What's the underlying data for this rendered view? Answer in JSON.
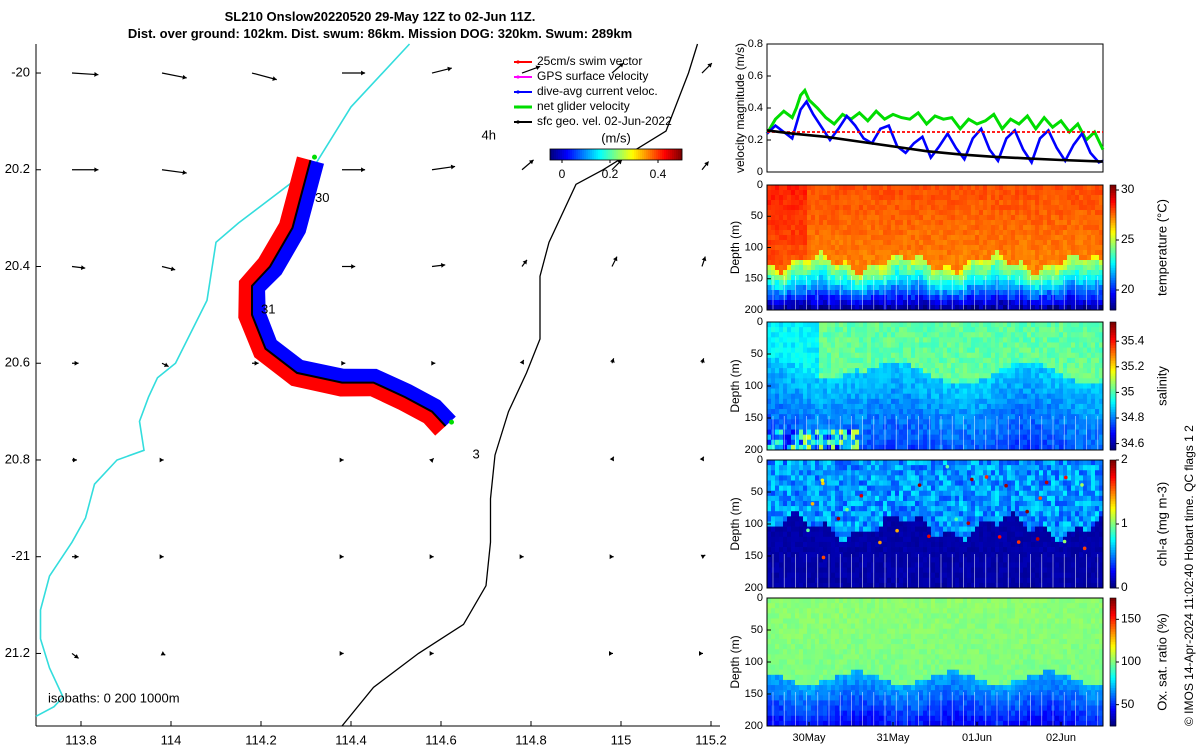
{
  "figure": {
    "title_line1": "SL210 Onslow20220520 29-May 12Z to 02-Jun 11Z.",
    "title_line2": "Dist. over ground: 102km. Dist. swum: 86km. Mission DOG: 320km. Swum: 289km",
    "footer_stamp": "© IMOS 14-Apr-2024 11:02:40 Hobart time. QC flags 1  2"
  },
  "chart_data": [
    {
      "type": "map",
      "xlim": [
        113.7,
        115.22
      ],
      "ylim": [
        -21.35,
        -19.94
      ],
      "xticks": [
        113.8,
        114,
        114.2,
        114.4,
        114.6,
        114.8,
        115,
        115.2
      ],
      "xtick_labels": [
        "113.8",
        "114",
        "114.2",
        "114.4",
        "114.6",
        "114.8",
        "115",
        "115.2"
      ],
      "yticks": [
        -20.0,
        -20.2,
        -20.4,
        -20.6,
        -20.8,
        -21.0,
        -21.2
      ],
      "ytick_labels": [
        "-20",
        "20.2",
        "20.4",
        "20.6",
        "20.8",
        "-21",
        "21.2"
      ],
      "legend": [
        {
          "label": "25cm/s swim vector",
          "color": "#ff0000"
        },
        {
          "label": "GPS surface velocity",
          "color": "#ff00ff"
        },
        {
          "label": "dive-avg current veloc.",
          "color": "#0000ff"
        },
        {
          "label": "net glider velocity",
          "color": "#00dd00"
        },
        {
          "label": "sfc geo. vel. 02-Jun-2022",
          "color": "#000000"
        }
      ],
      "colorbar": {
        "label": "(m/s)",
        "ticks": [
          0,
          0.2,
          0.4
        ],
        "tick_labels": [
          "0",
          "0.2",
          "0.4"
        ],
        "range": [
          -0.05,
          0.5
        ]
      },
      "isobaths_text": "isobaths: 0   200  1000m",
      "time_labels": [
        {
          "text": "4h",
          "lon": 114.69,
          "lat": -20.13
        },
        {
          "text": "30",
          "lon": 114.32,
          "lat": -20.26
        },
        {
          "text": "31",
          "lon": 114.2,
          "lat": -20.49
        },
        {
          "text": "3",
          "lon": 114.67,
          "lat": -20.79
        }
      ],
      "track": [
        [
          114.31,
          -20.18
        ],
        [
          114.27,
          -20.32
        ],
        [
          114.22,
          -20.4
        ],
        [
          114.18,
          -20.44
        ],
        [
          114.18,
          -20.5
        ],
        [
          114.21,
          -20.57
        ],
        [
          114.28,
          -20.62
        ],
        [
          114.38,
          -20.64
        ],
        [
          114.45,
          -20.64
        ],
        [
          114.52,
          -20.67
        ],
        [
          114.58,
          -20.7
        ],
        [
          114.61,
          -20.73
        ]
      ],
      "contour_200m": [
        [
          114.53,
          -19.94
        ],
        [
          114.4,
          -20.07
        ],
        [
          114.32,
          -20.19
        ],
        [
          114.15,
          -20.31
        ],
        [
          114.1,
          -20.35
        ],
        [
          114.08,
          -20.47
        ],
        [
          114.01,
          -20.6
        ],
        [
          113.97,
          -20.63
        ],
        [
          113.95,
          -20.67
        ],
        [
          113.93,
          -20.72
        ],
        [
          113.94,
          -20.78
        ],
        [
          113.88,
          -20.8
        ],
        [
          113.83,
          -20.85
        ],
        [
          113.81,
          -20.92
        ],
        [
          113.78,
          -20.97
        ],
        [
          113.73,
          -21.04
        ],
        [
          113.71,
          -21.11
        ],
        [
          113.71,
          -21.17
        ],
        [
          113.73,
          -21.23
        ],
        [
          113.76,
          -21.29
        ],
        [
          113.74,
          -21.31
        ],
        [
          113.7,
          -21.33
        ]
      ],
      "contour_0m": [
        [
          115.17,
          -19.94
        ],
        [
          115.15,
          -20.0
        ],
        [
          115.1,
          -20.12
        ],
        [
          114.96,
          -20.2
        ],
        [
          114.9,
          -20.23
        ],
        [
          114.84,
          -20.35
        ],
        [
          114.82,
          -20.42
        ],
        [
          114.82,
          -20.55
        ],
        [
          114.79,
          -20.62
        ],
        [
          114.75,
          -20.7
        ],
        [
          114.72,
          -20.79
        ],
        [
          114.71,
          -20.88
        ],
        [
          114.71,
          -20.97
        ],
        [
          114.7,
          -21.06
        ],
        [
          114.65,
          -21.14
        ],
        [
          114.55,
          -21.2
        ],
        [
          114.45,
          -21.27
        ],
        [
          114.38,
          -21.35
        ]
      ],
      "current_vectors": [
        [
          113.78,
          -20.0,
          0.08,
          -0.005
        ],
        [
          113.98,
          -20.0,
          0.075,
          -0.015
        ],
        [
          114.18,
          -20.0,
          0.075,
          -0.02
        ],
        [
          114.38,
          -20.0,
          0.07,
          0.0
        ],
        [
          114.58,
          -20.0,
          0.06,
          0.015
        ],
        [
          114.78,
          -20.0,
          0.055,
          0.02
        ],
        [
          114.98,
          -20.0,
          0.035,
          0.03
        ],
        [
          115.18,
          -20.0,
          0.03,
          0.03
        ],
        [
          113.78,
          -20.2,
          0.08,
          0.0
        ],
        [
          113.98,
          -20.2,
          0.075,
          -0.01
        ],
        [
          114.38,
          -20.2,
          0.07,
          0.0
        ],
        [
          114.58,
          -20.2,
          0.07,
          0.01
        ],
        [
          114.78,
          -20.2,
          0.035,
          0.03
        ],
        [
          114.98,
          -20.2,
          0.03,
          0.03
        ],
        [
          115.18,
          -20.2,
          0.02,
          0.025
        ],
        [
          113.78,
          -20.4,
          0.04,
          -0.005
        ],
        [
          113.98,
          -20.4,
          0.04,
          -0.01
        ],
        [
          114.38,
          -20.4,
          0.04,
          0.0
        ],
        [
          114.58,
          -20.4,
          0.04,
          0.005
        ],
        [
          114.78,
          -20.4,
          0.015,
          0.02
        ],
        [
          114.98,
          -20.4,
          0.015,
          0.03
        ],
        [
          115.18,
          -20.4,
          0.01,
          0.03
        ],
        [
          113.78,
          -20.6,
          0.02,
          0.0
        ],
        [
          113.98,
          -20.6,
          0.02,
          -0.01
        ],
        [
          114.18,
          -20.6,
          0.02,
          0.0
        ],
        [
          114.38,
          -20.6,
          0.01,
          0.0
        ],
        [
          114.58,
          -20.6,
          0.01,
          0.0
        ],
        [
          114.78,
          -20.6,
          0.005,
          0.01
        ],
        [
          114.98,
          -20.6,
          0.005,
          0.015
        ],
        [
          115.18,
          -20.6,
          0.005,
          0.015
        ],
        [
          113.78,
          -20.8,
          0.015,
          0.0
        ],
        [
          113.98,
          -20.8,
          0.005,
          0.0
        ],
        [
          114.38,
          -20.8,
          0.005,
          0.0
        ],
        [
          114.58,
          -20.8,
          0.005,
          0.005
        ],
        [
          114.98,
          -20.8,
          0.005,
          0.01
        ],
        [
          115.18,
          -20.8,
          0.005,
          0.01
        ],
        [
          113.78,
          -21.0,
          0.02,
          0.0
        ],
        [
          113.98,
          -21.0,
          0.005,
          0.0
        ],
        [
          114.38,
          -21.0,
          0.005,
          0.0
        ],
        [
          114.58,
          -21.0,
          0.005,
          0.0
        ],
        [
          114.78,
          -21.0,
          0.005,
          0.0
        ],
        [
          114.98,
          -21.0,
          0.005,
          0.0
        ],
        [
          115.18,
          -21.0,
          0.01,
          0.005
        ],
        [
          113.78,
          -21.2,
          0.02,
          -0.015
        ],
        [
          113.98,
          -21.2,
          0.01,
          -0.005
        ],
        [
          114.38,
          -21.2,
          0.005,
          0.0
        ],
        [
          114.58,
          -21.2,
          0.005,
          0.0
        ],
        [
          114.98,
          -21.2,
          0.003,
          0.0
        ],
        [
          115.18,
          -21.2,
          0.003,
          0.0
        ]
      ]
    },
    {
      "type": "line",
      "ylabel": "velocity magnitude (m/s)",
      "ylim": [
        0,
        0.8
      ],
      "yticks": [
        0,
        0.2,
        0.4,
        0.6,
        0.8
      ],
      "ytick_labels": [
        "0",
        "0.2",
        "0.4",
        "0.6",
        "0.8"
      ],
      "xlim": [
        29.5,
        33.5
      ],
      "series": [
        {
          "color": "#00dd00",
          "values": [
            [
              29.5,
              0.24
            ],
            [
              29.6,
              0.33
            ],
            [
              29.7,
              0.38
            ],
            [
              29.8,
              0.34
            ],
            [
              29.85,
              0.4
            ],
            [
              29.9,
              0.48
            ],
            [
              29.95,
              0.51
            ],
            [
              30.0,
              0.45
            ],
            [
              30.1,
              0.4
            ],
            [
              30.2,
              0.34
            ],
            [
              30.3,
              0.3
            ],
            [
              30.4,
              0.36
            ],
            [
              30.5,
              0.33
            ],
            [
              30.6,
              0.37
            ],
            [
              30.7,
              0.32
            ],
            [
              30.8,
              0.38
            ],
            [
              30.9,
              0.33
            ],
            [
              31.0,
              0.36
            ],
            [
              31.1,
              0.34
            ],
            [
              31.2,
              0.33
            ],
            [
              31.3,
              0.37
            ],
            [
              31.4,
              0.3
            ],
            [
              31.5,
              0.35
            ],
            [
              31.6,
              0.33
            ],
            [
              31.7,
              0.34
            ],
            [
              31.8,
              0.27
            ],
            [
              31.9,
              0.33
            ],
            [
              32.0,
              0.3
            ],
            [
              32.1,
              0.32
            ],
            [
              32.2,
              0.36
            ],
            [
              32.3,
              0.27
            ],
            [
              32.4,
              0.33
            ],
            [
              32.5,
              0.3
            ],
            [
              32.6,
              0.35
            ],
            [
              32.7,
              0.27
            ],
            [
              32.8,
              0.34
            ],
            [
              32.9,
              0.28
            ],
            [
              33.0,
              0.32
            ],
            [
              33.1,
              0.25
            ],
            [
              33.2,
              0.3
            ],
            [
              33.3,
              0.2
            ],
            [
              33.4,
              0.25
            ],
            [
              33.5,
              0.14
            ]
          ]
        },
        {
          "color": "#0000ff",
          "values": [
            [
              29.5,
              0.24
            ],
            [
              29.6,
              0.29
            ],
            [
              29.7,
              0.25
            ],
            [
              29.8,
              0.21
            ],
            [
              29.9,
              0.39
            ],
            [
              29.97,
              0.44
            ],
            [
              30.05,
              0.36
            ],
            [
              30.15,
              0.28
            ],
            [
              30.25,
              0.2
            ],
            [
              30.35,
              0.27
            ],
            [
              30.45,
              0.35
            ],
            [
              30.55,
              0.29
            ],
            [
              30.65,
              0.21
            ],
            [
              30.75,
              0.18
            ],
            [
              30.85,
              0.27
            ],
            [
              30.95,
              0.29
            ],
            [
              31.05,
              0.16
            ],
            [
              31.15,
              0.12
            ],
            [
              31.25,
              0.18
            ],
            [
              31.35,
              0.22
            ],
            [
              31.45,
              0.09
            ],
            [
              31.55,
              0.16
            ],
            [
              31.65,
              0.24
            ],
            [
              31.75,
              0.15
            ],
            [
              31.85,
              0.08
            ],
            [
              31.95,
              0.21
            ],
            [
              32.05,
              0.27
            ],
            [
              32.15,
              0.14
            ],
            [
              32.25,
              0.07
            ],
            [
              32.35,
              0.21
            ],
            [
              32.45,
              0.26
            ],
            [
              32.55,
              0.14
            ],
            [
              32.65,
              0.06
            ],
            [
              32.75,
              0.21
            ],
            [
              32.85,
              0.26
            ],
            [
              32.95,
              0.15
            ],
            [
              33.05,
              0.07
            ],
            [
              33.15,
              0.17
            ],
            [
              33.25,
              0.24
            ],
            [
              33.35,
              0.12
            ],
            [
              33.45,
              0.06
            ],
            [
              33.5,
              0.07
            ]
          ]
        },
        {
          "color": "#ff0000",
          "values": [
            [
              29.5,
              0.25
            ],
            [
              33.5,
              0.25
            ]
          ],
          "dashed": true
        },
        {
          "color": "#000000",
          "values": [
            [
              29.5,
              0.26
            ],
            [
              29.8,
              0.24
            ],
            [
              30.2,
              0.22
            ],
            [
              30.6,
              0.19
            ],
            [
              31.0,
              0.16
            ],
            [
              31.4,
              0.13
            ],
            [
              31.8,
              0.11
            ],
            [
              32.2,
              0.095
            ],
            [
              32.6,
              0.085
            ],
            [
              33.0,
              0.075
            ],
            [
              33.5,
              0.065
            ]
          ]
        }
      ]
    },
    {
      "type": "heatmap",
      "ylabel": "Depth (m)",
      "cbar_label": "temperature (°C)",
      "yticks": [
        0,
        50,
        100,
        150,
        200
      ],
      "ytick_labels": [
        "0",
        "50",
        "100",
        "150",
        "200"
      ],
      "crange": [
        18,
        30.5
      ],
      "cticks": [
        20,
        25,
        30
      ],
      "ctick_labels": [
        "20",
        "25",
        "30"
      ]
    },
    {
      "type": "heatmap",
      "ylabel": "Depth (m)",
      "cbar_label": "salinity",
      "yticks": [
        0,
        50,
        100,
        150,
        200
      ],
      "ytick_labels": [
        "0",
        "50",
        "100",
        "150",
        "200"
      ],
      "crange": [
        34.55,
        35.55
      ],
      "cticks": [
        34.6,
        34.8,
        35,
        35.2,
        35.4
      ],
      "ctick_labels": [
        "34.6",
        "34.8",
        "35",
        "35.2",
        "35.4"
      ]
    },
    {
      "type": "heatmap",
      "ylabel": "Depth (m)",
      "cbar_label": "chl-a (mg m-3)",
      "yticks": [
        0,
        50,
        100,
        150,
        200
      ],
      "ytick_labels": [
        "0",
        "50",
        "100",
        "150",
        "200"
      ],
      "crange": [
        0,
        2
      ],
      "cticks": [
        0,
        1,
        2
      ],
      "ctick_labels": [
        "0",
        "1",
        "2"
      ]
    },
    {
      "type": "heatmap",
      "ylabel": "Depth (m)",
      "cbar_label": "Ox. sat. ratio (%)",
      "yticks": [
        0,
        50,
        100,
        150,
        200
      ],
      "ytick_labels": [
        "0",
        "50",
        "100",
        "150",
        "200"
      ],
      "crange": [
        25,
        175
      ],
      "cticks": [
        50,
        100,
        150
      ],
      "ctick_labels": [
        "50",
        "100",
        "150"
      ],
      "xticks": [
        30,
        31,
        32,
        33
      ],
      "xtick_labels": [
        "30May",
        "31May",
        "01Jun",
        "02Jun"
      ]
    }
  ]
}
